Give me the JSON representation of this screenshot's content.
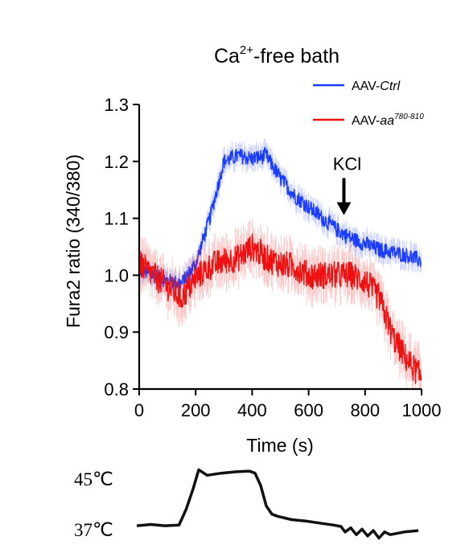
{
  "chart_data": {
    "type": "line",
    "title": {
      "pre": "Ca",
      "sup": "2+",
      "post": "-free bath"
    },
    "xlabel": "Time (s)",
    "ylabel": "Fura2 ratio (340/380)",
    "xlim": [
      0,
      1000
    ],
    "ylim": [
      0.8,
      1.3
    ],
    "xticks": [
      0,
      200,
      400,
      600,
      800,
      1000
    ],
    "yticks": [
      0.8,
      0.9,
      1.0,
      1.1,
      1.2,
      1.3
    ],
    "xtick_labels": [
      "0",
      "200",
      "400",
      "600",
      "800",
      "1000"
    ],
    "ytick_labels": [
      "0.8",
      "0.9",
      "1.0",
      "1.1",
      "1.2",
      "1.3"
    ],
    "grid": false,
    "legend_position": "top-right",
    "series": [
      {
        "legend_prefix": "AAV-",
        "legend_italic": "Ctrl",
        "color": "#1a3cff",
        "x": [
          0,
          50,
          100,
          150,
          200,
          250,
          300,
          350,
          400,
          450,
          500,
          550,
          600,
          650,
          700,
          750,
          800,
          850,
          900,
          950,
          1000
        ],
        "y": [
          1.01,
          1.0,
          0.99,
          0.985,
          1.02,
          1.1,
          1.2,
          1.21,
          1.205,
          1.21,
          1.17,
          1.14,
          1.12,
          1.1,
          1.08,
          1.065,
          1.055,
          1.045,
          1.04,
          1.035,
          1.025
        ]
      },
      {
        "legend_prefix": "AAV-",
        "legend_italic": "aa",
        "legend_sup": "780-810",
        "color": "#ee1111",
        "x": [
          0,
          50,
          100,
          150,
          200,
          250,
          300,
          350,
          400,
          450,
          500,
          550,
          600,
          650,
          700,
          750,
          800,
          850,
          900,
          950,
          1000
        ],
        "y": [
          1.02,
          1.0,
          0.98,
          0.96,
          0.995,
          1.015,
          1.025,
          1.03,
          1.05,
          1.03,
          1.02,
          1.015,
          1.0,
          1.0,
          1.0,
          1.0,
          0.99,
          0.96,
          0.89,
          0.85,
          0.82
        ]
      }
    ],
    "annotations": [
      {
        "text": "KCl",
        "x": 725,
        "arrow_y": 1.1
      }
    ]
  },
  "temperature_trace": {
    "labels": [
      "45℃",
      "37℃"
    ],
    "levels": [
      45,
      37
    ],
    "x": [
      0,
      50,
      100,
      150,
      175,
      200,
      220,
      250,
      300,
      350,
      400,
      420,
      440,
      460,
      480,
      500,
      550,
      600,
      650,
      700,
      725,
      740,
      760,
      780,
      800,
      820,
      840,
      860,
      880,
      900,
      950,
      1000
    ],
    "y": [
      37.1,
      37.3,
      37.1,
      37.2,
      39.5,
      42.5,
      45.3,
      44.5,
      44.8,
      45.0,
      45.1,
      44.8,
      43.0,
      40.0,
      38.8,
      38.5,
      38.0,
      37.8,
      37.5,
      37.2,
      37.0,
      36.2,
      36.8,
      35.8,
      36.6,
      35.6,
      36.4,
      35.3,
      36.2,
      35.8,
      36.2,
      36.4
    ]
  }
}
